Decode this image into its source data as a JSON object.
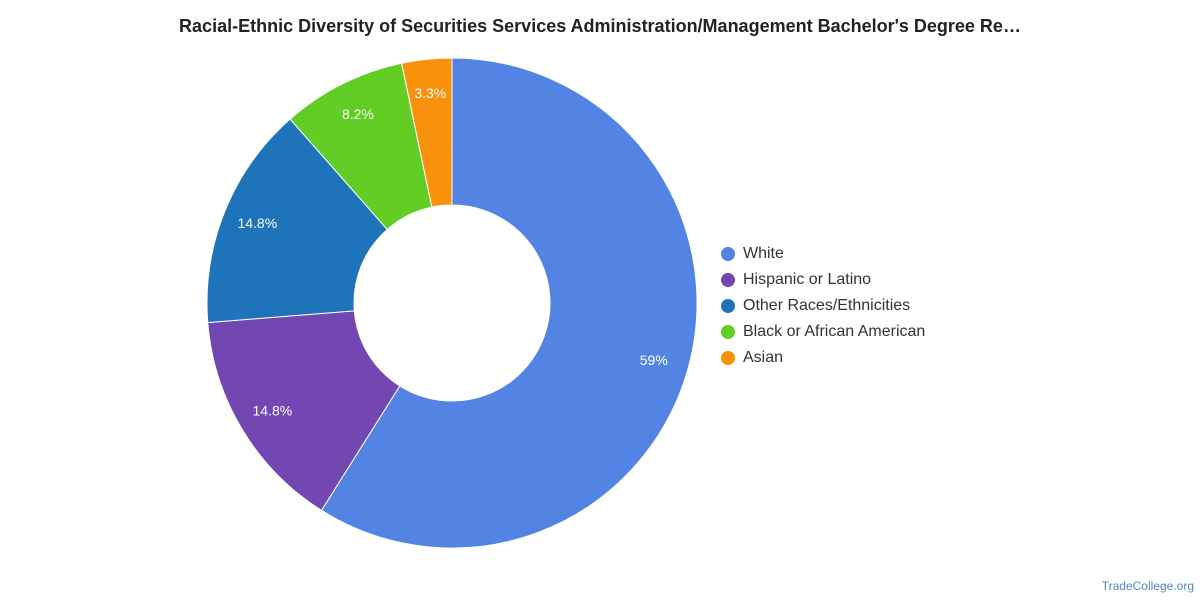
{
  "chart_data": {
    "type": "pie",
    "title": "Racial-Ethnic Diversity of Securities Services Administration/Management Bachelor's Degree Re…",
    "donut": true,
    "slices": [
      {
        "name": "White",
        "value": 59.0,
        "label": "59%",
        "color": "#5384e3"
      },
      {
        "name": "Hispanic or Latino",
        "value": 14.8,
        "label": "14.8%",
        "color": "#7347b1"
      },
      {
        "name": "Other Races/Ethnicities",
        "value": 14.8,
        "label": "14.8%",
        "color": "#1f73ba"
      },
      {
        "name": "Black or African American",
        "value": 8.2,
        "label": "8.2%",
        "color": "#62cd25"
      },
      {
        "name": "Asian",
        "value": 3.3,
        "label": "3.3%",
        "color": "#f9910d"
      }
    ],
    "legend_position": "right"
  },
  "source": "TradeCollege.org"
}
